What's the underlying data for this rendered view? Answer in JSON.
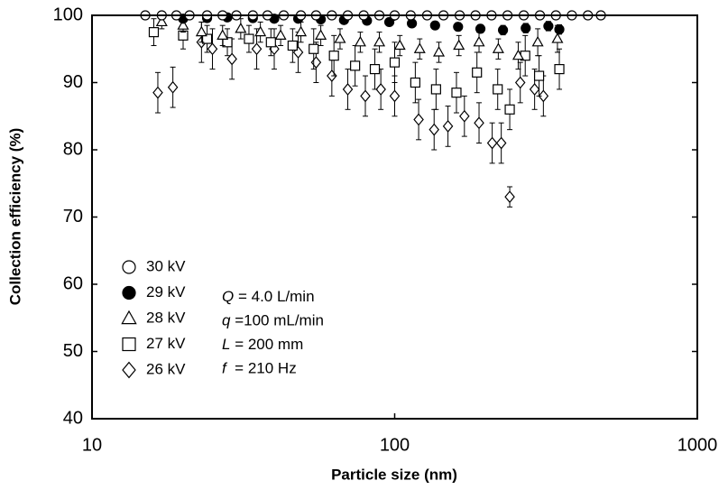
{
  "chart_data": {
    "type": "scatter",
    "log_x": true,
    "x_label": "Particle size (nm)",
    "y_label": "Collection efficiency (%)",
    "xlim": [
      10,
      1000
    ],
    "xticks": [
      10,
      100,
      1000
    ],
    "ylim": [
      40,
      100
    ],
    "yticks": [
      40,
      50,
      60,
      70,
      80,
      90,
      100
    ],
    "series": [
      {
        "name": "30 kV",
        "marker": "circle",
        "color": "#000000",
        "fill": "#ffffff",
        "x": [
          15,
          17,
          19,
          21,
          24,
          27,
          30,
          34,
          38,
          43,
          49,
          55,
          62,
          70,
          79,
          89,
          100,
          113,
          128,
          145,
          164,
          185,
          209,
          236,
          267,
          302,
          341,
          385,
          435,
          480
        ],
        "values": [
          100,
          100,
          100,
          100,
          100,
          100,
          100,
          100,
          100,
          100,
          100,
          100,
          100,
          100,
          100,
          100,
          100,
          100,
          100,
          100,
          100,
          100,
          100,
          100,
          100,
          100,
          100,
          100,
          100,
          100
        ]
      },
      {
        "name": "29 kV",
        "marker": "circle",
        "color": "#000000",
        "fill": "#000000",
        "x": [
          20,
          24,
          28,
          34,
          40,
          48,
          57,
          68,
          81,
          96,
          114,
          136,
          162,
          192,
          228,
          271,
          322,
          350
        ],
        "values": [
          99.5,
          99.6,
          99.7,
          99.6,
          99.5,
          99.5,
          99.4,
          99.3,
          99.2,
          99,
          98.8,
          98.5,
          98.3,
          98,
          97.8,
          98.1,
          98.4,
          97.9
        ],
        "errors": [
          0.3,
          0.3,
          0.3,
          0.3,
          0.3,
          0.3,
          0.4,
          0.4,
          0.4,
          0.5,
          0.5,
          0.5,
          0.6,
          0.6,
          0.7,
          0.7,
          0.7,
          0.7
        ]
      },
      {
        "name": "28 kV",
        "marker": "triangle",
        "color": "#000000",
        "fill": "#ffffff",
        "x": [
          17,
          20,
          23,
          27,
          31,
          36,
          42,
          49,
          57,
          66,
          77,
          89,
          104,
          121,
          140,
          163,
          190,
          220,
          256,
          297,
          345
        ],
        "values": [
          99,
          98.5,
          97.5,
          97,
          98,
          97.5,
          97,
          97.5,
          97,
          96.5,
          96,
          96,
          95.5,
          95,
          94.5,
          95.5,
          96,
          95,
          94,
          96,
          96.5
        ],
        "errors": [
          1,
          1,
          1.5,
          1.5,
          1.5,
          1.5,
          1.5,
          1.5,
          1.5,
          1.5,
          1.5,
          1.5,
          1.5,
          1.5,
          1.5,
          1.5,
          1.5,
          1.5,
          2,
          2,
          2
        ]
      },
      {
        "name": "27 kV",
        "marker": "square",
        "color": "#000000",
        "fill": "#ffffff",
        "x": [
          16,
          20,
          24,
          28,
          33,
          39,
          46,
          54,
          63,
          74,
          86,
          100,
          117,
          137,
          160,
          187,
          219,
          240,
          270,
          300,
          350
        ],
        "values": [
          97.5,
          97,
          96.5,
          96,
          96.5,
          96,
          95.5,
          95,
          94,
          92.5,
          92,
          93,
          90,
          89,
          88.5,
          91.5,
          89,
          86,
          94,
          91,
          92
        ],
        "errors": [
          2,
          2,
          2,
          2,
          2,
          2,
          2.5,
          3,
          3,
          3,
          3,
          3,
          3,
          3,
          3,
          3,
          3,
          3,
          3,
          3,
          3
        ]
      },
      {
        "name": "26 kV",
        "marker": "diamond",
        "color": "#000000",
        "fill": "#ffffff",
        "x": [
          16.5,
          18.5,
          23,
          25,
          29,
          35,
          40,
          48,
          55,
          62,
          70,
          80,
          90,
          100,
          120,
          135,
          150,
          170,
          190,
          210,
          225,
          240,
          260,
          290,
          310
        ],
        "values": [
          88.5,
          89.3,
          96,
          95,
          93.5,
          95,
          95,
          94.5,
          93,
          91,
          89,
          88,
          89,
          88,
          84.5,
          83,
          83.5,
          85,
          84,
          81,
          81,
          73,
          90,
          89,
          88
        ],
        "errors": [
          3,
          3,
          3,
          3,
          3,
          3,
          3,
          3,
          3,
          3,
          3,
          3,
          3,
          3,
          3,
          3,
          3,
          3,
          3,
          3,
          3,
          1.5,
          3,
          3,
          3
        ]
      }
    ],
    "annotations": [
      {
        "symbol": "Q",
        "text": " = 4.0 L/min"
      },
      {
        "symbol": "q",
        "text": " =100 mL/min"
      },
      {
        "symbol": "L",
        "text": " = 200 mm"
      },
      {
        "symbol": "f",
        "text": "  = 210 Hz"
      }
    ]
  }
}
